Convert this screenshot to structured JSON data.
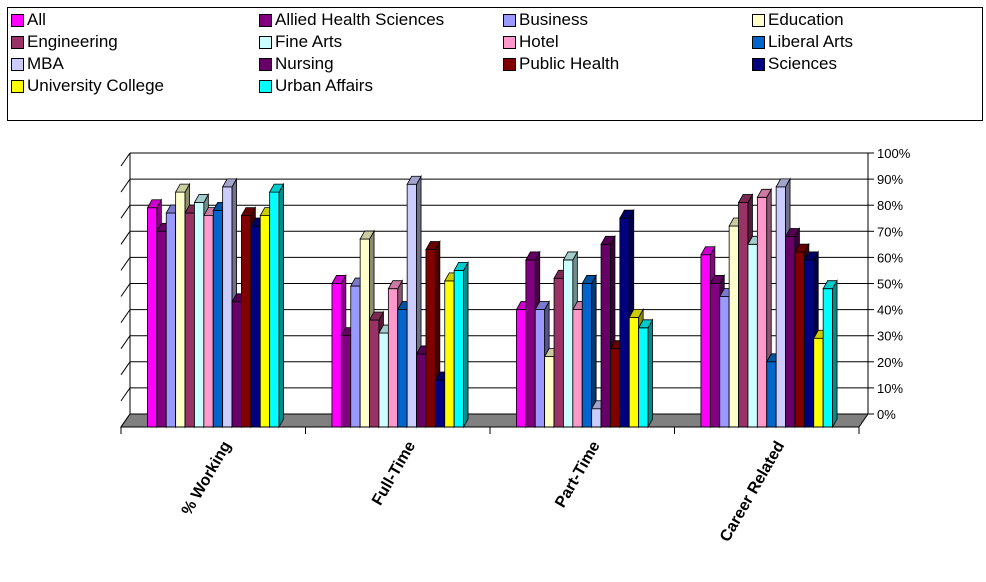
{
  "chart_data": {
    "type": "bar",
    "title": "",
    "xlabel": "",
    "ylabel": "",
    "ylim": [
      0,
      100
    ],
    "y_ticks": [
      "0%",
      "10%",
      "20%",
      "30%",
      "40%",
      "50%",
      "60%",
      "70%",
      "80%",
      "90%",
      "100%"
    ],
    "grid": true,
    "legend_position": "top",
    "categories": [
      "% Working",
      "Full-Time",
      "Part-Time",
      "Career Related"
    ],
    "series": [
      {
        "name": "All",
        "color": "#ff00ff",
        "values": [
          84,
          55,
          45,
          66
        ]
      },
      {
        "name": "Allied Health Sciences",
        "color": "#800080",
        "values": [
          75,
          35,
          64,
          55
        ]
      },
      {
        "name": "Business",
        "color": "#9999ff",
        "values": [
          82,
          54,
          45,
          50
        ]
      },
      {
        "name": "Education",
        "color": "#ffffcc",
        "values": [
          90,
          72,
          27,
          77
        ]
      },
      {
        "name": "Engineering",
        "color": "#993366",
        "values": [
          82,
          41,
          57,
          86
        ]
      },
      {
        "name": "Fine Arts",
        "color": "#ccffff",
        "values": [
          86,
          36,
          64,
          70
        ]
      },
      {
        "name": "Hotel",
        "color": "#ff99cc",
        "values": [
          81,
          53,
          45,
          88
        ]
      },
      {
        "name": "Liberal Arts",
        "color": "#0066cc",
        "values": [
          83,
          45,
          55,
          25
        ]
      },
      {
        "name": "MBA",
        "color": "#ccccff",
        "values": [
          92,
          93,
          7,
          92
        ]
      },
      {
        "name": "Nursing",
        "color": "#660066",
        "values": [
          48,
          28,
          70,
          73
        ]
      },
      {
        "name": "Public Health",
        "color": "#800000",
        "values": [
          81,
          68,
          30,
          67
        ]
      },
      {
        "name": "Sciences",
        "color": "#000080",
        "values": [
          77,
          18,
          80,
          64
        ]
      },
      {
        "name": "University College",
        "color": "#ffff00",
        "values": [
          81,
          56,
          42,
          34
        ]
      },
      {
        "name": "Urban Affairs",
        "color": "#00ffff",
        "values": [
          90,
          60,
          38,
          53
        ]
      }
    ]
  }
}
